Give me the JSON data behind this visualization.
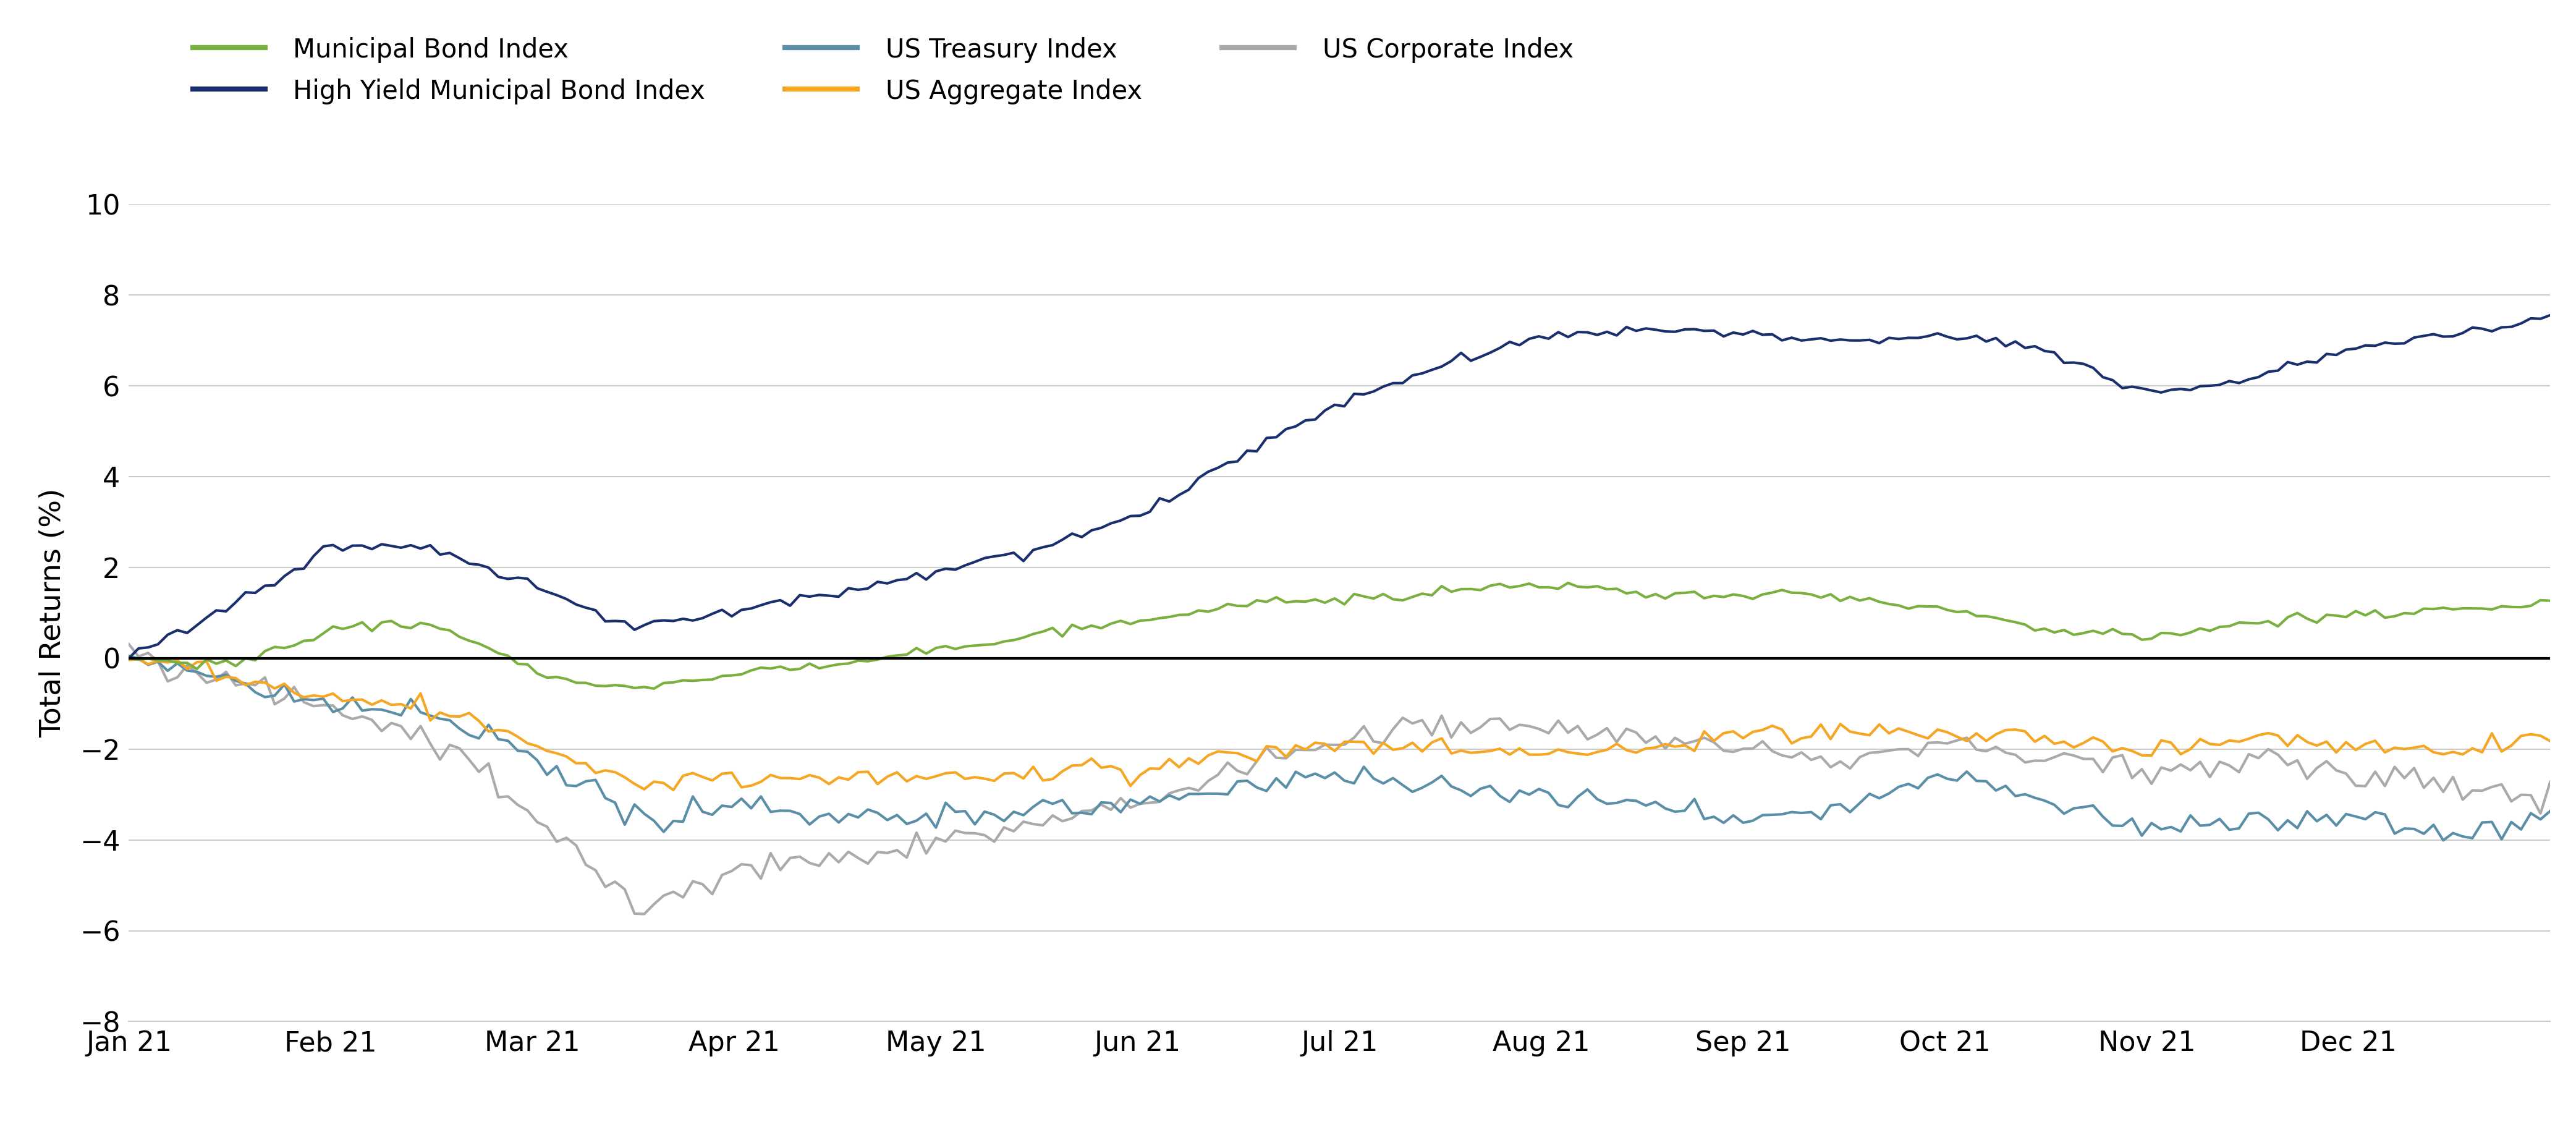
{
  "ylabel": "Total Returns (%)",
  "ylim": [
    -8,
    10
  ],
  "yticks": [
    -8,
    -6,
    -4,
    -2,
    0,
    2,
    4,
    6,
    8,
    10
  ],
  "xtick_labels": [
    "Jan 21",
    "Feb 21",
    "Mar 21",
    "Apr 21",
    "May 21",
    "Jun 21",
    "Jul 21",
    "Aug 21",
    "Sep 21",
    "Oct 21",
    "Nov 21",
    "Dec 21"
  ],
  "legend_row1": [
    "Municipal Bond Index",
    "High Yield Municipal Bond Index",
    "US Treasury Index"
  ],
  "legend_row2": [
    "US Aggregate Index",
    "US Corporate Index"
  ],
  "series_colors": {
    "Municipal Bond Index": "#7ab040",
    "High Yield Municipal Bond Index": "#1a2f6e",
    "US Treasury Index": "#5b8fa8",
    "US Aggregate Index": "#f5a623",
    "US Corporate Index": "#aaaaaa"
  },
  "background_color": "#ffffff",
  "grid_color": "#cccccc",
  "zero_line_color": "#000000",
  "linewidth": 3.0
}
